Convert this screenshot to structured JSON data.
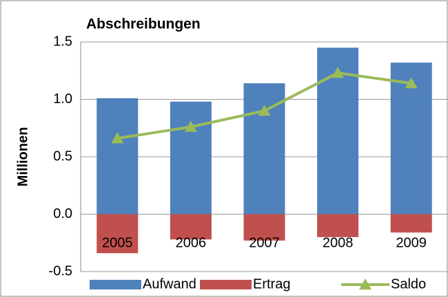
{
  "chart_data": {
    "type": "bar_line",
    "title": "Abschreibungen",
    "y_label": "Millionen",
    "categories": [
      "2005",
      "2006",
      "2007",
      "2008",
      "2009"
    ],
    "series": [
      {
        "name": "Aufwand",
        "type": "bar",
        "color": "#4f81bd",
        "values": [
          1.01,
          0.98,
          1.14,
          1.45,
          1.32
        ]
      },
      {
        "name": "Ertrag",
        "type": "bar",
        "color": "#c0504d",
        "values": [
          -0.34,
          -0.22,
          -0.23,
          -0.2,
          -0.16
        ]
      },
      {
        "name": "Saldo",
        "type": "line",
        "color": "#9bbb59",
        "values": [
          0.66,
          0.76,
          0.9,
          1.23,
          1.14
        ]
      }
    ],
    "ylim": [
      -0.5,
      1.5
    ],
    "yticks": [
      -0.5,
      {
        "value": 0,
        "label": "0.0"
      },
      0.5,
      {
        "value": 1,
        "label": "1.0"
      },
      1.5
    ],
    "grid": true,
    "legend": "bottom"
  }
}
